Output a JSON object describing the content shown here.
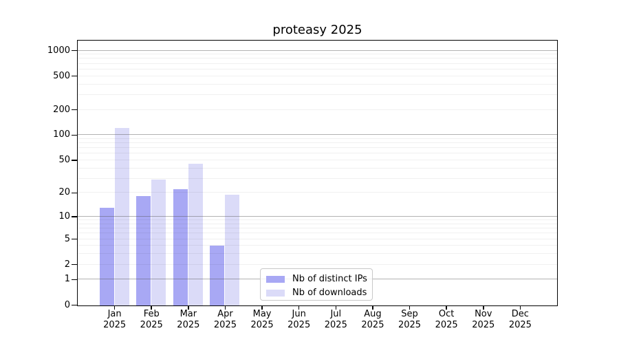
{
  "title": "proteasy 2025",
  "chart_data": {
    "type": "bar",
    "title": "proteasy 2025",
    "scale": "log1p",
    "grid": true,
    "legend_position": "bottom-center",
    "categories": [
      "Jan",
      "Feb",
      "Mar",
      "Apr",
      "May",
      "Jun",
      "Jul",
      "Aug",
      "Sep",
      "Oct",
      "Nov",
      "Dec"
    ],
    "category_year": "2025",
    "series": [
      {
        "name": "Nb of distinct IPs",
        "color": "#a8a8f4",
        "values": [
          13,
          18,
          22,
          4,
          0,
          0,
          0,
          0,
          0,
          0,
          0,
          0
        ]
      },
      {
        "name": "Nb of downloads",
        "color": "#dbdbf8",
        "values": [
          120,
          29,
          45,
          19,
          0,
          0,
          0,
          0,
          0,
          0,
          0,
          0
        ]
      }
    ],
    "y_ticks": [
      0,
      1,
      2,
      5,
      10,
      20,
      50,
      100,
      200,
      500,
      1000
    ],
    "major_grid_values": [
      1,
      10,
      100,
      1000
    ],
    "ylim": [
      0,
      1300
    ]
  }
}
